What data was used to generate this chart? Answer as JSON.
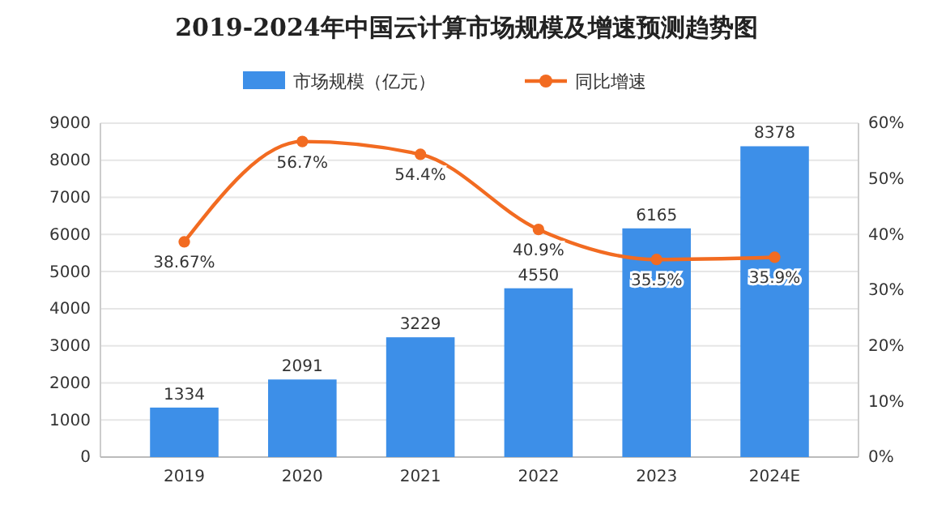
{
  "chart_data": {
    "type": "bar",
    "title": "2019-2024年中国云计算市场规模及增速预测趋势图",
    "categories": [
      "2019",
      "2020",
      "2021",
      "2022",
      "2023",
      "2024E"
    ],
    "series": [
      {
        "name": "市场规模（亿元）",
        "color": "#3d8fe8",
        "values": [
          1334,
          2091,
          3229,
          4550,
          6165,
          8378
        ],
        "value_labels": [
          "1334",
          "2091",
          "3229",
          "4550",
          "6165",
          "8378"
        ]
      },
      {
        "name": "同比增速",
        "type": "line",
        "axis": "y2",
        "color": "#f26b21",
        "values": [
          38.67,
          56.7,
          54.4,
          40.9,
          35.5,
          35.9
        ],
        "value_labels": [
          "38.67%",
          "56.7%",
          "54.4%",
          "40.9%",
          "35.5%",
          "35.9%"
        ]
      }
    ],
    "ylim": [
      0,
      9000
    ],
    "yticks": [
      0,
      1000,
      2000,
      3000,
      4000,
      5000,
      6000,
      7000,
      8000,
      9000
    ],
    "y2lim": [
      0,
      60
    ],
    "y2ticks": [
      {
        "value": 0,
        "label": "0%"
      },
      {
        "value": 10,
        "label": "10%"
      },
      {
        "value": 20,
        "label": "20%"
      },
      {
        "value": 30,
        "label": "30%"
      },
      {
        "value": 40,
        "label": "40%"
      },
      {
        "value": 50,
        "label": "50%"
      },
      {
        "value": 60,
        "label": "60%"
      }
    ],
    "grid": "y",
    "legend": "top",
    "marker": "circle",
    "line_style": "solid"
  }
}
